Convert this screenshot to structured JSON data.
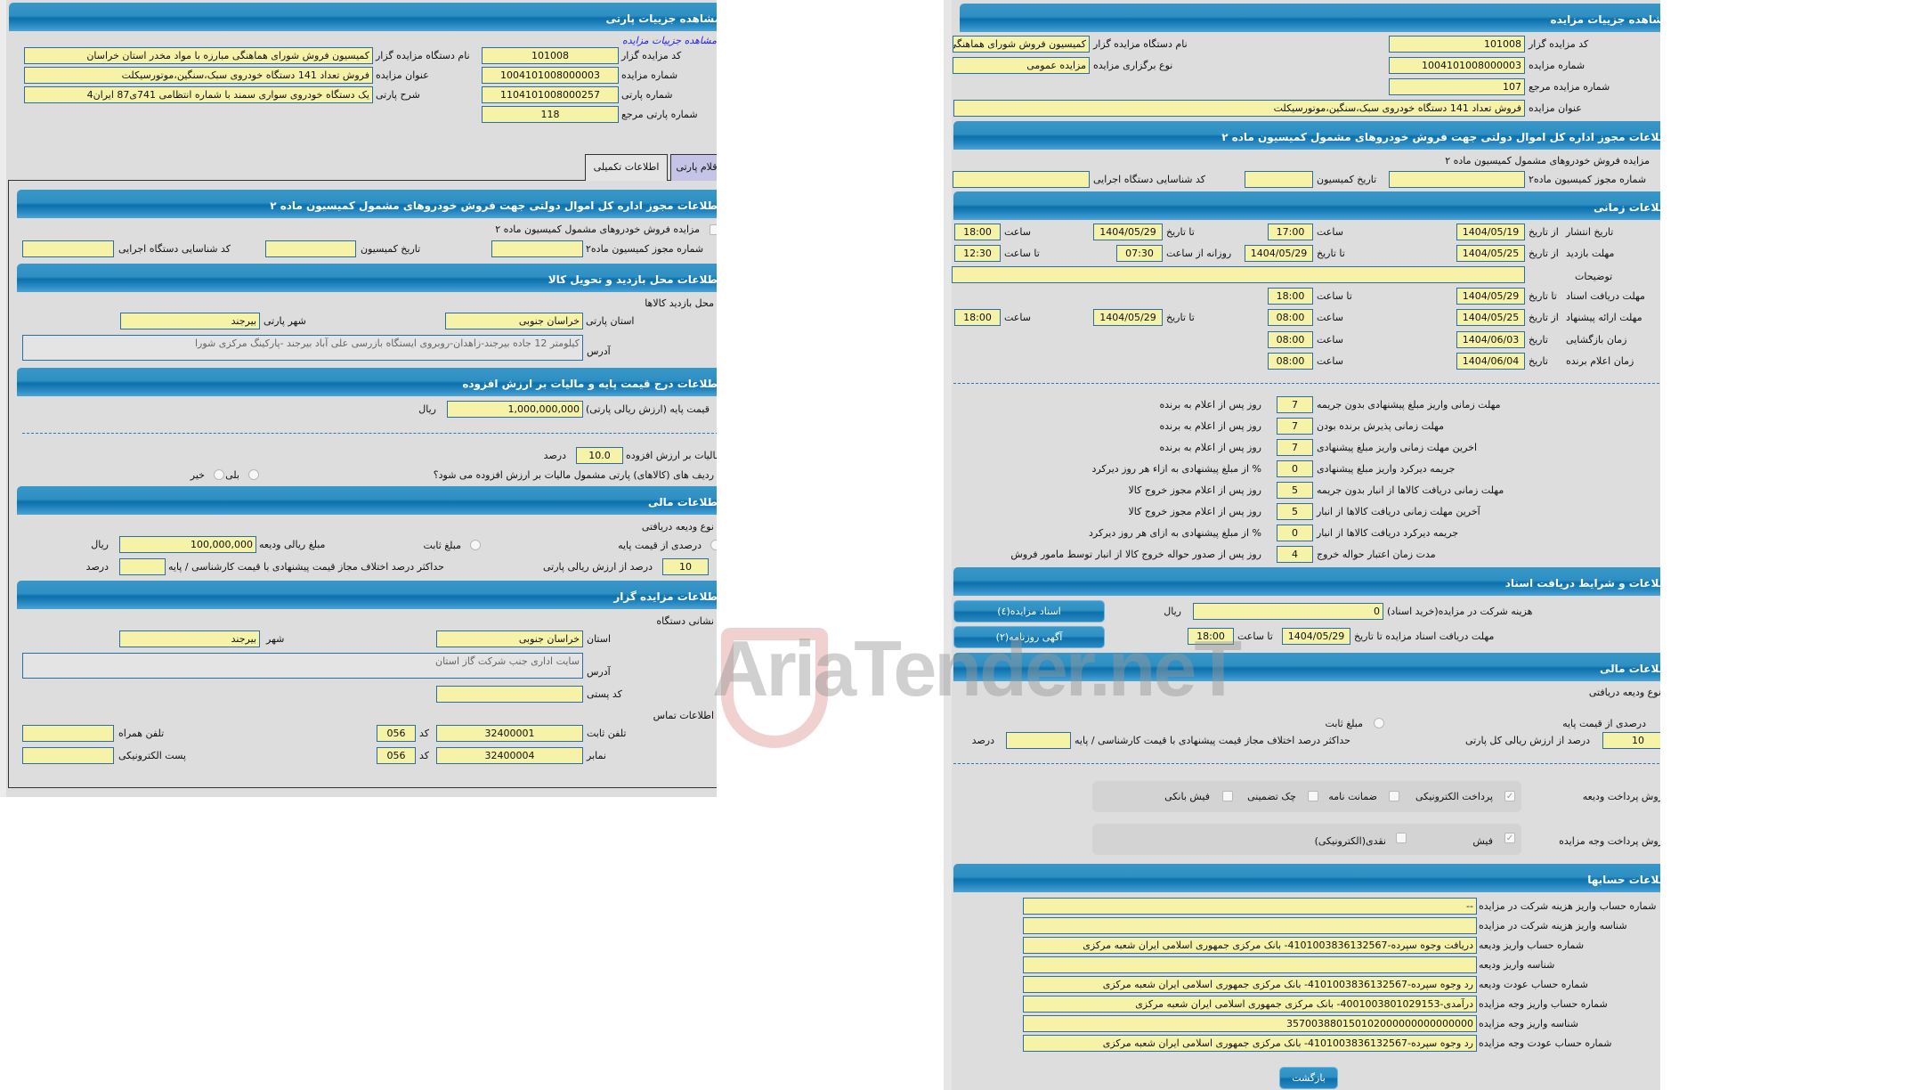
{
  "colors": {
    "header": "#0b70ab",
    "field_bg": "#f6f3a8",
    "field_border": "#2b6ea6",
    "panel_bg": "#dddddd",
    "link": "#2222ee"
  },
  "watermark": "AriaTender.neT",
  "left": {
    "title": "مشاهده جزییات پارتی",
    "link": "مشاهده جزییات مزایده",
    "info_right": [
      {
        "label": "کد مزایده گزار",
        "value": "101008"
      },
      {
        "label": "شماره مزایده",
        "value": "1004101008000003"
      },
      {
        "label": "شماره پارتی",
        "value": "1104101008000257"
      },
      {
        "label": "شماره پارتی مرجع",
        "value": "118"
      }
    ],
    "info_left": [
      {
        "label": "نام دستگاه مزایده گزار",
        "value": "کمیسیون فروش شورای هماهنگی مبارزه با مواد مخدر استان خراسان"
      },
      {
        "label": "عنوان مزایده",
        "value": "فروش تعداد 141 دستگاه خودروی سبک،سنگین،موتورسیکلت"
      },
      {
        "label": "شرح پارتی",
        "value": "یک دستگاه خودروی سواری سمند  با شماره انتظامی 741ی87 ایران4"
      }
    ],
    "tabs": [
      "اطلاعات تکمیلی",
      "اقلام پارتی"
    ],
    "permit": {
      "title": "اطلاعات مجوز اداره کل اموال دولتی جهت فروش خودروهای مشمول کمیسیون ماده ۲",
      "checkbox_label": "مزایده فروش خودروهای مشمول کمیسیون ماده ۲",
      "permit_no_label": "شماره مجوز کمیسیون ماده۲",
      "permit_no": "",
      "date_label": "تاریخ کمیسیون",
      "date": "",
      "exec_code_label": "کد شناسایی دستگاه اجرایی",
      "exec_code": ""
    },
    "visit": {
      "title": "اطلاعات محل بازدید و تحویل کالا",
      "place_label": "محل بازدید کالاها",
      "province_label": "استان پارتی",
      "province": "خراسان جنوبی",
      "city_label": "شهر پارتی",
      "city": "بیرجند",
      "address_label": "آدرس",
      "address": "کیلومتر 12 جاده بیرجند-زاهدان-روبروی ایستگاه بازرسی علی آباد بیرجند -پارکینگ مرکزی شورا"
    },
    "price": {
      "title": "اطلاعات درج قیمت پایه و مالیات بر ارزش افزوده",
      "base_label": "قیمت پایه (ارزش ریالی پارتی)",
      "base": "1,000,000,000",
      "currency": "ریال",
      "vat_label": "مالیات بر ارزش افزوده",
      "vat": "10.0",
      "percent": "درصد",
      "vat_question": "ردیف های (کالاهای) پارتی مشمول مالیات بر ارزش افزوده می شود؟",
      "yes": "بلی",
      "no": "خیر"
    },
    "finance": {
      "title": "اطلاعات مالی",
      "deposit_type_label": "نوع ودیعه دریافتی",
      "percent_option": "درصدی از قیمت پایه",
      "fixed_option": "مبلغ ثابت",
      "deposit_amount_label": "مبلغ ریالی ودیعه",
      "deposit_amount": "100,000,000",
      "currency": "ریال",
      "percent_of_label": "درصد از ارزش ریالی پارتی",
      "percent_of": "10",
      "max_diff_label": "حداکثر درصد اختلاف مجاز قیمت پیشنهادی با قیمت کارشناسی / پایه",
      "max_diff": "",
      "percent": "درصد"
    },
    "org": {
      "title": "اطلاعات مزایده گزار",
      "address_heading": "نشانی دستگاه",
      "province_label": "استان",
      "province": "خراسان جنوبی",
      "city_label": "شهر",
      "city": "بیرجند",
      "address_label": "آدرس",
      "address": "سایت اداری جنب شرکت گاز استان",
      "postal_label": "کد پستی",
      "postal": "",
      "contact_heading": "اطلاعات تماس",
      "phone_label": "تلفن ثابت",
      "phone": "32400001",
      "code_label": "کد",
      "phone_code": "056",
      "mobile_label": "تلفن همراه",
      "mobile": "",
      "fax_label": "نمابر",
      "fax": "32400004",
      "fax_code": "056",
      "email_label": "پست الکترونیکی",
      "email": ""
    }
  },
  "right": {
    "title": "مشاهده جزییات مزایده",
    "info_right": [
      {
        "label": "کد مزایده گزار",
        "value": "101008"
      },
      {
        "label": "شماره مزایده",
        "value": "1004101008000003"
      },
      {
        "label": "شماره مزایده مرجع",
        "value": "107"
      }
    ],
    "info_left": [
      {
        "label": "نام دستگاه مزایده گزار",
        "value": "کمیسیون فروش شورای هماهنگی مبارزه با مواد مخدر استان خراسان"
      },
      {
        "label": "نوع برگزاری مزایده",
        "value": "مزایده عمومی"
      }
    ],
    "auction_title": {
      "label": "عنوان مزایده",
      "value": "فروش تعداد 141 دستگاه خودروی سبک،سنگین،موتورسیکلت"
    },
    "permit": {
      "title": "اطلاعات مجوز اداره کل اموال دولتی جهت فروش خودروهای مشمول کمیسیون ماده ۲",
      "checkbox_label": "مزایده فروش خودروهای مشمول کمیسیون ماده ۲",
      "permit_no_label": "شماره مجوز کمیسیون ماده۲",
      "permit_no": "",
      "date_label": "تاریخ کمیسیون",
      "date": "",
      "exec_code_label": "کد شناسایی دستگاه اجرایی",
      "exec_code": ""
    },
    "timing": {
      "title": "اطلاعات زمانی",
      "from_date": "از تاریخ",
      "to_date": "تا تاریخ",
      "date": "تاریخ",
      "time": "ساعت",
      "to_time": "تا ساعت",
      "daily_from_time": "روزانه از ساعت",
      "publish": {
        "label": "تاریخ انتشار",
        "from": "1404/05/19",
        "from_time": "17:00",
        "to": "1404/05/29",
        "to_time": "18:00"
      },
      "visit": {
        "label": "مهلت بازدید",
        "from": "1404/05/25",
        "to": "1404/05/29",
        "daily_from": "07:30",
        "daily_to": "12:30"
      },
      "description": {
        "label": "توضیحات",
        "value": ""
      },
      "docs": {
        "label": "مهلت دریافت اسناد",
        "to": "1404/05/29",
        "to_time": "18:00"
      },
      "offer": {
        "label": "مهلت ارائه پیشنهاد",
        "from": "1404/05/25",
        "from_time": "08:00",
        "to": "1404/05/29",
        "to_time": "18:00"
      },
      "opening": {
        "label": "زمان بازگشایی",
        "date": "1404/06/03",
        "time": "08:00"
      },
      "winner": {
        "label": "زمان اعلام برنده",
        "date": "1404/06/04",
        "time": "08:00"
      }
    },
    "deadlines": [
      {
        "label": "مهلت زمانی واریز مبلغ پیشنهادی بدون جریمه",
        "value": "7",
        "unit": "روز پس از اعلام به برنده"
      },
      {
        "label": "مهلت زمانی پذیرش برنده بودن",
        "value": "7",
        "unit": "روز پس از اعلام به برنده"
      },
      {
        "label": "اخرین مهلت زمانی واریز مبلغ پیشنهادی",
        "value": "7",
        "unit": "روز پس از اعلام به برنده"
      },
      {
        "label": "جریمه دیرکرد واریز مبلغ پیشنهادی",
        "value": "0",
        "unit": "% از مبلغ پیشنهادی به ازاء هر روز دیرکرد"
      },
      {
        "label": "مهلت زمانی دریافت کالاها از انبار بدون جریمه",
        "value": "5",
        "unit": "روز پس از اعلام مجوز خروج کالا"
      },
      {
        "label": "آخرین مهلت زمانی دریافت کالاها از انبار",
        "value": "5",
        "unit": "روز پس از اعلام مجوز خروج کالا"
      },
      {
        "label": "جریمه دیرکرد دریافت کالاها از انبار",
        "value": "0",
        "unit": "% از مبلغ پیشنهادی به ازای هر روز دیرکرد"
      },
      {
        "label": "مدت زمان اعتبار حواله خروج",
        "value": "4",
        "unit": "روز پس از صدور حواله خروج کالا از انبار توسط مامور فروش"
      }
    ],
    "documents": {
      "title": "اطلاعات و شرایط دریافت اسناد",
      "docs_button": "اسناد مزایده(٤)",
      "ad_button": "آگهی روزنامه(۲)",
      "fee_label": "هزینه شرکت در مزایده(خرید اسناد)",
      "fee": "0",
      "currency": "ریال",
      "deadline_label": "مهلت دریافت اسناد مزایده تا تاریخ",
      "deadline_date": "1404/05/29",
      "to_time": "تا ساعت",
      "deadline_time": "18:00"
    },
    "finance": {
      "title": "اطلاعات مالی",
      "deposit_type_label": "نوع ودیعه دریافتی",
      "percent_option": "درصدی از قیمت پایه",
      "fixed_option": "مبلغ ثابت",
      "percent_of_label": "درصد از ارزش ریالی کل پارتی",
      "percent_of": "10",
      "max_diff_label": "حداکثر درصد اختلاف مجاز قیمت پیشنهادی با قیمت کارشناسی / پایه",
      "max_diff": "",
      "percent": "درصد",
      "deposit_method_label": "روش پرداخت ودیعه",
      "deposit_methods": [
        {
          "label": "پرداخت الکترونیکی",
          "checked": true
        },
        {
          "label": "ضمانت نامه",
          "checked": false
        },
        {
          "label": "چک تضمینی",
          "checked": false
        },
        {
          "label": "فیش بانکی",
          "checked": false
        }
      ],
      "payment_method_label": "روش پرداخت وجه مزایده",
      "payment_methods": [
        {
          "label": "فیش",
          "checked": true
        },
        {
          "label": "نقدی(الکترونیکی)",
          "checked": false
        }
      ]
    },
    "accounts": {
      "title": "اطلاعات حسابها",
      "rows": [
        {
          "label": "شماره حساب واریز هزینه شرکت در مزایده",
          "value": "--"
        },
        {
          "label": "شناسه واریز هزینه شرکت در مزایده",
          "value": ""
        },
        {
          "label": "شماره حساب واریز ودیعه",
          "value": "دریافت وجوه سپرده-4101003836132567- بانک مرکزی جمهوری اسلامی ایران شعبه مرکزی"
        },
        {
          "label": "شناسه واریز ودیعه",
          "value": ""
        },
        {
          "label": "شماره حساب عودت ودیعه",
          "value": "رد وجوه سپرده-4101003836132567- بانک مرکزی جمهوری اسلامی ایران شعبه مرکزی"
        },
        {
          "label": "شماره حساب واریز وجه مزایده",
          "value": "درآمدی-4001003801029153- بانک مرکزی جمهوری اسلامی ایران شعبه مرکزی"
        },
        {
          "label": "شناسه واریز وجه مزایده",
          "value": "357003880150102000000000000000"
        },
        {
          "label": "شماره حساب عودت وجه مزایده",
          "value": "رد وجوه سپرده-4101003836132567- بانک مرکزی جمهوری اسلامی ایران شعبه مرکزی"
        }
      ]
    },
    "back_button": "بازگشت"
  }
}
